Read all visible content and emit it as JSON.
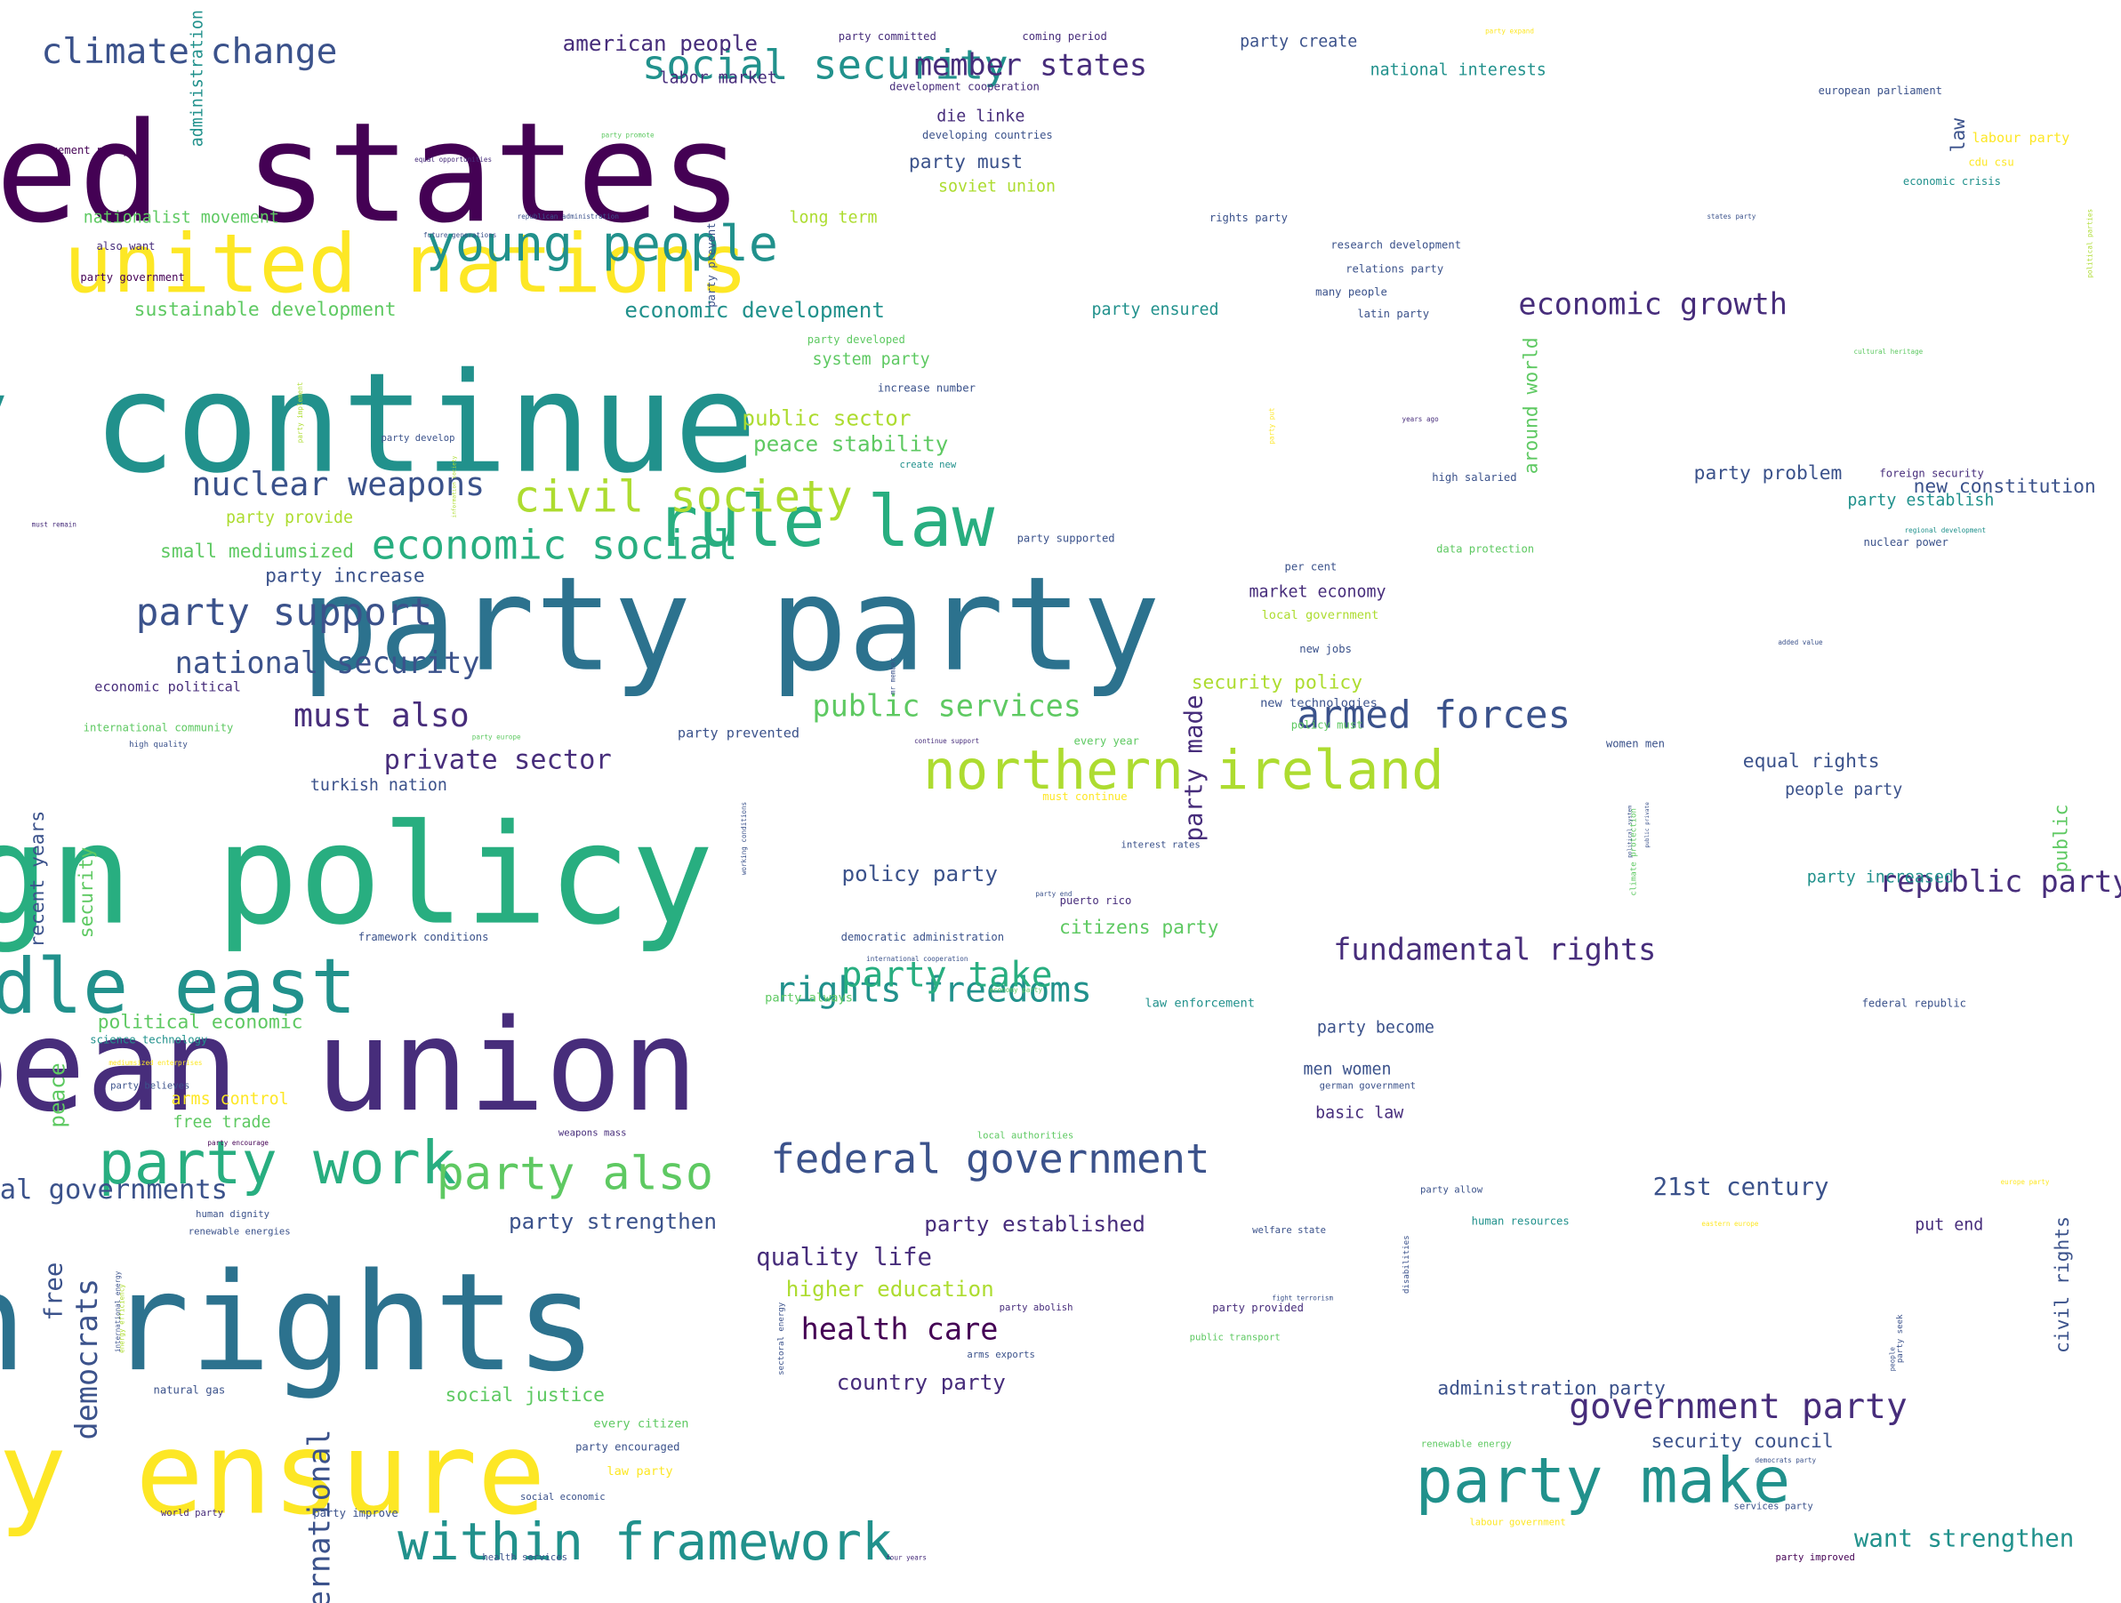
{
  "title": "",
  "palette": [
    "#440154",
    "#472d7b",
    "#3b528b",
    "#2c728e",
    "#21918c",
    "#28ae80",
    "#5ec962",
    "#addc30",
    "#fde725"
  ],
  "words": [
    {
      "text": "united states",
      "weight": 1.0,
      "color": "#440154"
    },
    {
      "text": "party continue",
      "weight": 0.95,
      "color": "#21918c"
    },
    {
      "text": "party party",
      "weight": 0.9,
      "color": "#2c728e"
    },
    {
      "text": "foreign policy",
      "weight": 0.9,
      "color": "#28ae80"
    },
    {
      "text": "human rights",
      "weight": 0.95,
      "color": "#2c728e"
    },
    {
      "text": "european union",
      "weight": 0.9,
      "color": "#472d7b"
    },
    {
      "text": "party ensure",
      "weight": 0.85,
      "color": "#fde725"
    },
    {
      "text": "united nations",
      "weight": 0.6,
      "color": "#fde725"
    },
    {
      "text": "middle east",
      "weight": 0.55,
      "color": "#21918c"
    },
    {
      "text": "rule law",
      "weight": 0.55,
      "color": "#28ae80"
    },
    {
      "text": "party make",
      "weight": 0.5,
      "color": "#21918c"
    },
    {
      "text": "party work",
      "weight": 0.45,
      "color": "#28ae80"
    },
    {
      "text": "northern ireland",
      "weight": 0.45,
      "color": "#addc30"
    },
    {
      "text": "within framework",
      "weight": 0.4,
      "color": "#21918c"
    },
    {
      "text": "young people",
      "weight": 0.4,
      "color": "#21918c"
    },
    {
      "text": "civil society",
      "weight": 0.4,
      "color": "#addc30"
    },
    {
      "text": "party also",
      "weight": 0.4,
      "color": "#5ec962"
    },
    {
      "text": "economic social",
      "weight": 0.35,
      "color": "#28ae80"
    },
    {
      "text": "social security",
      "weight": 0.35,
      "color": "#21918c"
    },
    {
      "text": "federal government",
      "weight": 0.35,
      "color": "#3b528b"
    },
    {
      "text": "armed forces",
      "weight": 0.32,
      "color": "#3b528b"
    },
    {
      "text": "party support",
      "weight": 0.32,
      "color": "#3b528b"
    },
    {
      "text": "rights freedoms",
      "weight": 0.3,
      "color": "#21918c"
    },
    {
      "text": "government party",
      "weight": 0.3,
      "color": "#472d7b"
    },
    {
      "text": "nuclear weapons",
      "weight": 0.3,
      "color": "#3b528b"
    },
    {
      "text": "climate change",
      "weight": 0.28,
      "color": "#3b528b"
    },
    {
      "text": "member states",
      "weight": 0.28,
      "color": "#472d7b"
    },
    {
      "text": "party take",
      "weight": 0.28,
      "color": "#28ae80"
    },
    {
      "text": "fundamental rights",
      "weight": 0.28,
      "color": "#472d7b"
    },
    {
      "text": "national security",
      "weight": 0.28,
      "color": "#3b528b"
    },
    {
      "text": "must also",
      "weight": 0.28,
      "color": "#472d7b"
    },
    {
      "text": "public services",
      "weight": 0.27,
      "color": "#5ec962"
    },
    {
      "text": "economic growth",
      "weight": 0.27,
      "color": "#472d7b"
    },
    {
      "text": "health care",
      "weight": 0.26,
      "color": "#440154"
    },
    {
      "text": "private sector",
      "weight": 0.26,
      "color": "#472d7b"
    },
    {
      "text": "republic party",
      "weight": 0.26,
      "color": "#472d7b"
    },
    {
      "text": "international",
      "weight": 0.26,
      "color": "#3b528b"
    },
    {
      "text": "want strengthen",
      "weight": 0.22,
      "color": "#21918c"
    },
    {
      "text": "quality life",
      "weight": 0.22,
      "color": "#472d7b"
    },
    {
      "text": "21st century",
      "weight": 0.22,
      "color": "#3b528b"
    },
    {
      "text": "american people",
      "weight": 0.22,
      "color": "#472d7b"
    },
    {
      "text": "economic development",
      "weight": 0.22,
      "color": "#21918c"
    },
    {
      "text": "public sector",
      "weight": 0.22,
      "color": "#addc30"
    },
    {
      "text": "peace stability",
      "weight": 0.22,
      "color": "#5ec962"
    },
    {
      "text": "party established",
      "weight": 0.22,
      "color": "#472d7b"
    },
    {
      "text": "party strengthen",
      "weight": 0.2,
      "color": "#3b528b"
    },
    {
      "text": "higher education",
      "weight": 0.2,
      "color": "#addc30"
    },
    {
      "text": "country party",
      "weight": 0.2,
      "color": "#472d7b"
    },
    {
      "text": "policy party",
      "weight": 0.2,
      "color": "#3b528b"
    },
    {
      "text": "sustainable development",
      "weight": 0.2,
      "color": "#5ec962"
    },
    {
      "text": "security council",
      "weight": 0.18,
      "color": "#3b528b"
    },
    {
      "text": "administration party",
      "weight": 0.18,
      "color": "#3b528b"
    },
    {
      "text": "social justice",
      "weight": 0.17,
      "color": "#5ec962"
    },
    {
      "text": "new constitution",
      "weight": 0.17,
      "color": "#3b528b"
    },
    {
      "text": "law",
      "weight": 0.25,
      "color": "#3b528b"
    },
    {
      "text": "party must",
      "weight": 0.17,
      "color": "#3b528b"
    },
    {
      "text": "die linke",
      "weight": 0.17,
      "color": "#472d7b"
    },
    {
      "text": "soviet union",
      "weight": 0.17,
      "color": "#addc30"
    },
    {
      "text": "party problem",
      "weight": 0.17,
      "color": "#3b528b"
    },
    {
      "text": "party establish",
      "weight": 0.16,
      "color": "#21918c"
    },
    {
      "text": "system party",
      "weight": 0.16,
      "color": "#5ec962"
    },
    {
      "text": "party ensured",
      "weight": 0.16,
      "color": "#21918c"
    },
    {
      "text": "long term",
      "weight": 0.16,
      "color": "#addc30"
    },
    {
      "text": "small mediumsized",
      "weight": 0.16,
      "color": "#5ec962"
    },
    {
      "text": "party increase",
      "weight": 0.16,
      "color": "#3b528b"
    },
    {
      "text": "security policy",
      "weight": 0.16,
      "color": "#addc30"
    },
    {
      "text": "market economy",
      "weight": 0.16,
      "color": "#472d7b"
    },
    {
      "text": "men women",
      "weight": 0.15,
      "color": "#3b528b"
    },
    {
      "text": "basic law",
      "weight": 0.15,
      "color": "#472d7b"
    },
    {
      "text": "equal rights",
      "weight": 0.14,
      "color": "#3b528b"
    },
    {
      "text": "people party",
      "weight": 0.16,
      "color": "#3b528b"
    },
    {
      "text": "party increased",
      "weight": 0.15,
      "color": "#21918c"
    },
    {
      "text": "put end",
      "weight": 0.15,
      "color": "#472d7b"
    },
    {
      "text": "citizens party",
      "weight": 0.15,
      "color": "#5ec962"
    },
    {
      "text": "party become",
      "weight": 0.15,
      "color": "#3b528b"
    },
    {
      "text": "party provide",
      "weight": 0.15,
      "color": "#addc30"
    },
    {
      "text": "turkish nation",
      "weight": 0.15,
      "color": "#3b528b"
    },
    {
      "text": "political economic",
      "weight": 0.15,
      "color": "#5ec962"
    },
    {
      "text": "arms control",
      "weight": 0.15,
      "color": "#fde725"
    },
    {
      "text": "free trade",
      "weight": 0.14,
      "color": "#5ec962"
    },
    {
      "text": "local governments",
      "weight": 0.14,
      "color": "#3b528b"
    },
    {
      "text": "democrats",
      "weight": 0.2,
      "color": "#3b528b"
    },
    {
      "text": "free",
      "weight": 0.22,
      "color": "#3b528b"
    },
    {
      "text": "peace",
      "weight": 0.2,
      "color": "#5ec962"
    },
    {
      "text": "security",
      "weight": 0.18,
      "color": "#5ec962"
    },
    {
      "text": "recent years",
      "weight": 0.16,
      "color": "#3b528b"
    },
    {
      "text": "party made",
      "weight": 0.16,
      "color": "#472d7b"
    },
    {
      "text": "around world",
      "weight": 0.17,
      "color": "#5ec962"
    },
    {
      "text": "civil rights",
      "weight": 0.16,
      "color": "#3b528b"
    },
    {
      "text": "public",
      "weight": 0.16,
      "color": "#5ec962"
    },
    {
      "text": "administration",
      "weight": 0.16,
      "color": "#21918c"
    },
    {
      "text": "nationalist movement",
      "weight": 0.12,
      "color": "#5ec962"
    },
    {
      "text": "national interests",
      "weight": 0.12,
      "color": "#21918c"
    },
    {
      "text": "party create",
      "weight": 0.12,
      "color": "#3b528b"
    },
    {
      "text": "labor market",
      "weight": 0.12,
      "color": "#472d7b"
    },
    {
      "text": "equal opportunities",
      "weight": 0.12,
      "color": "#472d7b"
    },
    {
      "text": "party committed",
      "weight": 0.05,
      "color": "#472d7b"
    },
    {
      "text": "coming period",
      "weight": 0.07,
      "color": "#472d7b"
    },
    {
      "text": "party expand",
      "weight": 0.07,
      "color": "#fde725"
    },
    {
      "text": "development cooperation",
      "weight": 0.05,
      "color": "#472d7b"
    },
    {
      "text": "developing countries",
      "weight": 0.07,
      "color": "#3b528b"
    },
    {
      "text": "european parliament",
      "weight": 0.07,
      "color": "#3b528b"
    },
    {
      "text": "labour party",
      "weight": 0.07,
      "color": "#fde725"
    },
    {
      "text": "cdu csu",
      "weight": 0.1,
      "color": "#fde725"
    },
    {
      "text": "economic crisis",
      "weight": 0.07,
      "color": "#21918c"
    },
    {
      "text": "movement party",
      "weight": 0.07,
      "color": "#440154"
    },
    {
      "text": "also want",
      "weight": 0.08,
      "color": "#472d7b"
    },
    {
      "text": "party government",
      "weight": 0.08,
      "color": "#440154"
    },
    {
      "text": "future generations",
      "weight": 0.08,
      "color": "#3b528b"
    },
    {
      "text": "republican administration",
      "weight": 0.05,
      "color": "#3b528b"
    },
    {
      "text": "party promote",
      "weight": 0.05,
      "color": "#5ec962"
    },
    {
      "text": "party prevent",
      "weight": 0.05,
      "color": "#3b528b"
    },
    {
      "text": "rights party",
      "weight": 0.08,
      "color": "#3b528b"
    },
    {
      "text": "research development",
      "weight": 0.08,
      "color": "#3b528b"
    },
    {
      "text": "relations party",
      "weight": 0.08,
      "color": "#3b528b"
    },
    {
      "text": "many people",
      "weight": 0.08,
      "color": "#3b528b"
    },
    {
      "text": "latin party",
      "weight": 0.08,
      "color": "#3b528b"
    },
    {
      "text": "party developed",
      "weight": 0.08,
      "color": "#5ec962"
    },
    {
      "text": "increase number",
      "weight": 0.07,
      "color": "#3b528b"
    },
    {
      "text": "party develop",
      "weight": 0.07,
      "color": "#3b528b"
    },
    {
      "text": "create new",
      "weight": 0.07,
      "color": "#21918c"
    },
    {
      "text": "must remain",
      "weight": 0.06,
      "color": "#472d7b"
    },
    {
      "text": "high salaried",
      "weight": 0.05,
      "color": "#3b528b"
    },
    {
      "text": "foreign security",
      "weight": 0.08,
      "color": "#472d7b"
    },
    {
      "text": "years ago",
      "weight": 0.08,
      "color": "#472d7b"
    },
    {
      "text": "regional development",
      "weight": 0.05,
      "color": "#21918c"
    },
    {
      "text": "party supported",
      "weight": 0.05,
      "color": "#3b528b"
    },
    {
      "text": "data protection",
      "weight": 0.08,
      "color": "#5ec962"
    },
    {
      "text": "nuclear power",
      "weight": 0.08,
      "color": "#3b528b"
    },
    {
      "text": "per cent",
      "weight": 0.08,
      "color": "#3b528b"
    },
    {
      "text": "local government",
      "weight": 0.08,
      "color": "#addc30"
    },
    {
      "text": "new jobs",
      "weight": 0.1,
      "color": "#3b528b"
    },
    {
      "text": "new technologies",
      "weight": 0.08,
      "color": "#3b528b"
    },
    {
      "text": "policy must",
      "weight": 0.1,
      "color": "#5ec962"
    },
    {
      "text": "added value",
      "weight": 0.08,
      "color": "#3b528b"
    },
    {
      "text": "economic political",
      "weight": 0.05,
      "color": "#472d7b"
    },
    {
      "text": "international community",
      "weight": 0.12,
      "color": "#5ec962"
    },
    {
      "text": "high quality",
      "weight": 0.08,
      "color": "#3b528b"
    },
    {
      "text": "party europe",
      "weight": 0.06,
      "color": "#5ec962"
    },
    {
      "text": "party prevented",
      "weight": 0.05,
      "color": "#3b528b"
    },
    {
      "text": "continue support",
      "weight": 0.1,
      "color": "#472d7b"
    },
    {
      "text": "every year",
      "weight": 0.05,
      "color": "#5ec962"
    },
    {
      "text": "women men",
      "weight": 0.07,
      "color": "#3b528b"
    },
    {
      "text": "must continue",
      "weight": 0.08,
      "color": "#fde725"
    },
    {
      "text": "interest rates",
      "weight": 0.08,
      "color": "#3b528b"
    },
    {
      "text": "party end",
      "weight": 0.07,
      "color": "#3b528b"
    },
    {
      "text": "puerto rico",
      "weight": 0.1,
      "color": "#472d7b"
    },
    {
      "text": "framework conditions",
      "weight": 0.05,
      "color": "#3b528b"
    },
    {
      "text": "democratic administration",
      "weight": 0.07,
      "color": "#3b528b"
    },
    {
      "text": "international cooperation",
      "weight": 0.08,
      "color": "#3b528b"
    },
    {
      "text": "party always",
      "weight": 0.08,
      "color": "#5ec962"
    },
    {
      "text": "economy party",
      "weight": 0.05,
      "color": "#5ec962"
    },
    {
      "text": "law enforcement",
      "weight": 0.09,
      "color": "#21918c"
    },
    {
      "text": "federal republic",
      "weight": 0.05,
      "color": "#3b528b"
    },
    {
      "text": "science technology",
      "weight": 0.08,
      "color": "#21918c"
    },
    {
      "text": "mediumsized enterprises",
      "weight": 0.07,
      "color": "#fde725"
    },
    {
      "text": "party believes",
      "weight": 0.08,
      "color": "#3b528b"
    },
    {
      "text": "german government",
      "weight": 0.05,
      "color": "#3b528b"
    },
    {
      "text": "weapons mass",
      "weight": 0.07,
      "color": "#472d7b"
    },
    {
      "text": "local authorities",
      "weight": 0.07,
      "color": "#5ec962"
    },
    {
      "text": "party encourage",
      "weight": 0.07,
      "color": "#440154"
    },
    {
      "text": "party allow",
      "weight": 0.07,
      "color": "#3b528b"
    },
    {
      "text": "europe party",
      "weight": 0.05,
      "color": "#fde725"
    },
    {
      "text": "human dignity",
      "weight": 0.07,
      "color": "#3b528b"
    },
    {
      "text": "renewable energies",
      "weight": 0.05,
      "color": "#3b528b"
    },
    {
      "text": "welfare state",
      "weight": 0.07,
      "color": "#3b528b"
    },
    {
      "text": "human resources",
      "weight": 0.07,
      "color": "#21918c"
    },
    {
      "text": "eastern europe",
      "weight": 0.07,
      "color": "#fde725"
    },
    {
      "text": "fight terrorism",
      "weight": 0.08,
      "color": "#3b528b"
    },
    {
      "text": "party abolish",
      "weight": 0.05,
      "color": "#472d7b"
    },
    {
      "text": "party provided",
      "weight": 0.05,
      "color": "#472d7b"
    },
    {
      "text": "public transport",
      "weight": 0.07,
      "color": "#5ec962"
    },
    {
      "text": "arms exports",
      "weight": 0.08,
      "color": "#3b528b"
    },
    {
      "text": "natural gas",
      "weight": 0.07,
      "color": "#3b528b"
    },
    {
      "text": "every citizen",
      "weight": 0.07,
      "color": "#5ec962"
    },
    {
      "text": "party encouraged",
      "weight": 0.08,
      "color": "#3b528b"
    },
    {
      "text": "law party",
      "weight": 0.09,
      "color": "#fde725"
    },
    {
      "text": "social economic",
      "weight": 0.08,
      "color": "#3b528b"
    },
    {
      "text": "world party",
      "weight": 0.1,
      "color": "#472d7b"
    },
    {
      "text": "party improve",
      "weight": 0.07,
      "color": "#3b528b"
    },
    {
      "text": "health services",
      "weight": 0.07,
      "color": "#3b528b"
    },
    {
      "text": "four years",
      "weight": 0.08,
      "color": "#472d7b"
    },
    {
      "text": "renewable energy",
      "weight": 0.07,
      "color": "#5ec962"
    },
    {
      "text": "democrats party",
      "weight": 0.05,
      "color": "#3b528b"
    },
    {
      "text": "labour government",
      "weight": 0.07,
      "color": "#fde725"
    },
    {
      "text": "services party",
      "weight": 0.05,
      "color": "#3b528b"
    },
    {
      "text": "party improved",
      "weight": 0.07,
      "color": "#440154"
    },
    {
      "text": "states party",
      "weight": 0.07,
      "color": "#3b528b"
    },
    {
      "text": "cultural heritage",
      "weight": 0.07,
      "color": "#5ec962"
    },
    {
      "text": "political parties",
      "weight": 0.05,
      "color": "#addc30"
    },
    {
      "text": "party implement",
      "weight": 0.05,
      "color": "#addc30"
    },
    {
      "text": "information society",
      "weight": 0.05,
      "color": "#addc30"
    },
    {
      "text": "party put",
      "weight": 0.05,
      "color": "#fde725"
    },
    {
      "text": "mr member",
      "weight": 0.04,
      "color": "#3b528b"
    },
    {
      "text": "working conditions",
      "weight": 0.05,
      "color": "#3b528b"
    },
    {
      "text": "climate protection",
      "weight": 0.05,
      "color": "#5ec962"
    },
    {
      "text": "public private",
      "weight": 0.04,
      "color": "#3b528b"
    },
    {
      "text": "political system",
      "weight": 0.05,
      "color": "#3b528b"
    },
    {
      "text": "energy efficiency",
      "weight": 0.06,
      "color": "#addc30"
    },
    {
      "text": "international energy",
      "weight": 0.04,
      "color": "#3b528b"
    },
    {
      "text": "sectoral energy",
      "weight": 0.04,
      "color": "#3b528b"
    },
    {
      "text": "disabilities",
      "weight": 0.05,
      "color": "#3b528b"
    },
    {
      "text": "people",
      "weight": 0.05,
      "color": "#3b528b"
    },
    {
      "text": "party seek",
      "weight": 0.06,
      "color": "#3b528b"
    },
    {
      "text": "mass destruction",
      "weight": 0.06,
      "color": "#472d7b"
    },
    {
      "text": "sector party",
      "weight": 0.05,
      "color": "#3b528b"
    },
    {
      "text": "party",
      "weight": 0.05,
      "color": "#3b528b"
    }
  ]
}
